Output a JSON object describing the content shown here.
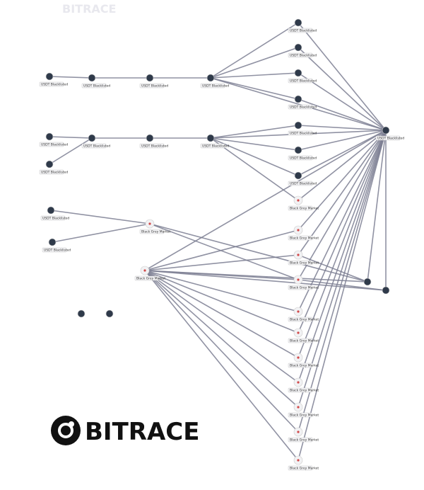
{
  "brand": "BITRACE",
  "watermark": "BITRACE",
  "nodes": [
    {
      "label": "USDT Blacklisted"
    },
    {
      "label": "USDT Blacklisted"
    },
    {
      "label": "USDT Blacklisted"
    },
    {
      "label": "USDT Blacklisted"
    },
    {
      "label": "USDT Blacklisted"
    },
    {
      "label": "USDT Blacklisted"
    },
    {
      "label": "USDT Blacklisted"
    },
    {
      "label": "USDT Blacklisted"
    },
    {
      "label": "USDT Blacklisted"
    },
    {
      "label": "USDT Blacklisted"
    },
    {
      "label": "USDT Blacklisted"
    },
    {
      "label": "USDT Blacklisted"
    },
    {
      "label": "USDT Blacklisted"
    },
    {
      "label": "USDT Blacklisted"
    },
    {
      "label": "USDT Blacklisted"
    },
    {
      "label": "USDT Blacklisted"
    },
    {
      "label": "USDT Blacklisted"
    },
    {
      "label": "Black Grey Market"
    },
    {
      "label": "USDT Blacklisted"
    },
    {
      "label": "USDT Blacklisted"
    },
    {
      "label": "Black Grey Market"
    },
    {
      "label": "Black Grey Market"
    },
    {
      "label": "Black Grey Market"
    },
    {
      "label": "Black Grey Market"
    },
    {
      "label": "Black Grey Market"
    },
    {
      "label": "Black Grey Market"
    },
    {
      "label": "Black Grey Market"
    },
    {
      "label": "Black Grey Market"
    },
    {
      "label": "Black Grey Market"
    },
    {
      "label": "Black Grey Market"
    },
    {
      "label": "Black Grey Market"
    },
    {
      "label": "Black Grey Market"
    }
  ]
}
